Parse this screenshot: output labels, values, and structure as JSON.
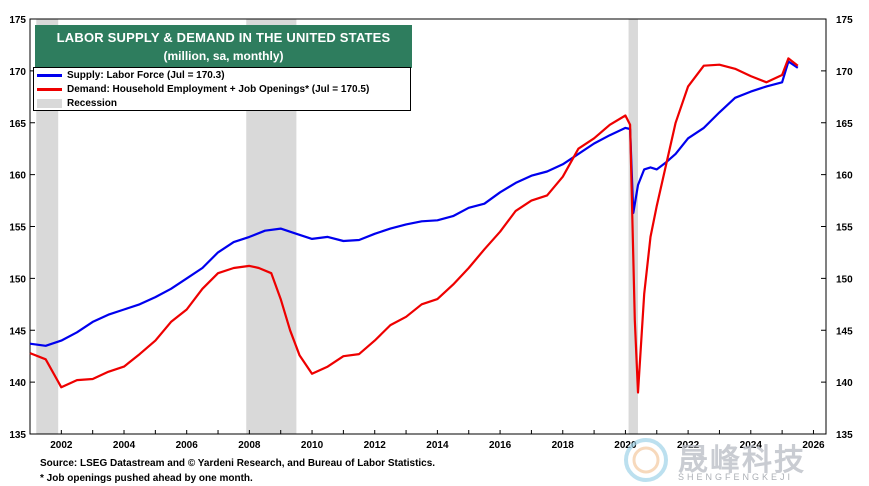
{
  "chart_data": {
    "type": "line",
    "title": "LABOR SUPPLY & DEMAND IN THE UNITED STATES",
    "subtitle": "(million, sa, monthly)",
    "xlim": [
      2001.0,
      2026.4
    ],
    "ylim": [
      135,
      175
    ],
    "x_ticks": [
      2002,
      2004,
      2006,
      2008,
      2010,
      2012,
      2014,
      2016,
      2018,
      2020,
      2022,
      2024,
      2026
    ],
    "y_ticks": [
      135,
      140,
      145,
      150,
      155,
      160,
      165,
      170,
      175
    ],
    "recessions": [
      [
        2001.2,
        2001.9
      ],
      [
        2007.9,
        2009.5
      ],
      [
        2020.1,
        2020.4
      ]
    ],
    "legend_recession": "Recession",
    "series": [
      {
        "name": "Supply: Labor Force (Jul = 170.3)",
        "color": "#0000ee",
        "x": [
          2001.0,
          2001.5,
          2002.0,
          2002.5,
          2003.0,
          2003.5,
          2004.0,
          2004.5,
          2005.0,
          2005.5,
          2006.0,
          2006.5,
          2007.0,
          2007.5,
          2008.0,
          2008.5,
          2009.0,
          2009.5,
          2010.0,
          2010.5,
          2011.0,
          2011.5,
          2012.0,
          2012.5,
          2013.0,
          2013.5,
          2014.0,
          2014.5,
          2015.0,
          2015.5,
          2016.0,
          2016.5,
          2017.0,
          2017.5,
          2018.0,
          2018.5,
          2019.0,
          2019.5,
          2020.0,
          2020.15,
          2020.25,
          2020.4,
          2020.6,
          2020.8,
          2021.0,
          2021.3,
          2021.6,
          2022.0,
          2022.5,
          2023.0,
          2023.5,
          2024.0,
          2024.5,
          2025.0,
          2025.2,
          2025.5
        ],
        "values": [
          143.7,
          143.5,
          144.0,
          144.8,
          145.8,
          146.5,
          147.0,
          147.5,
          148.2,
          149.0,
          150.0,
          151.0,
          152.5,
          153.5,
          154.0,
          154.6,
          154.8,
          154.3,
          153.8,
          154.0,
          153.6,
          153.7,
          154.3,
          154.8,
          155.2,
          155.5,
          155.6,
          156.0,
          156.8,
          157.2,
          158.3,
          159.2,
          159.9,
          160.3,
          161.0,
          162.0,
          163.0,
          163.8,
          164.5,
          164.4,
          156.3,
          159.0,
          160.5,
          160.7,
          160.5,
          161.2,
          162.0,
          163.5,
          164.5,
          166.0,
          167.4,
          168.0,
          168.5,
          168.9,
          170.9,
          170.3
        ]
      },
      {
        "name": "Demand: Household Employment + Job Openings* (Jul = 170.5)",
        "color": "#ee0000",
        "x": [
          2001.0,
          2001.5,
          2002.0,
          2002.5,
          2003.0,
          2003.5,
          2004.0,
          2004.5,
          2005.0,
          2005.5,
          2006.0,
          2006.5,
          2007.0,
          2007.5,
          2008.0,
          2008.3,
          2008.7,
          2009.0,
          2009.3,
          2009.6,
          2010.0,
          2010.5,
          2011.0,
          2011.5,
          2012.0,
          2012.5,
          2013.0,
          2013.5,
          2014.0,
          2014.5,
          2015.0,
          2015.5,
          2016.0,
          2016.5,
          2017.0,
          2017.5,
          2018.0,
          2018.5,
          2019.0,
          2019.5,
          2020.0,
          2020.15,
          2020.3,
          2020.4,
          2020.6,
          2020.8,
          2021.0,
          2021.3,
          2021.6,
          2022.0,
          2022.5,
          2023.0,
          2023.5,
          2024.0,
          2024.5,
          2025.0,
          2025.2,
          2025.5
        ],
        "values": [
          142.8,
          142.2,
          139.5,
          140.2,
          140.3,
          141.0,
          141.5,
          142.7,
          144.0,
          145.8,
          147.0,
          149.0,
          150.5,
          151.0,
          151.2,
          151.0,
          150.5,
          148.0,
          145.0,
          142.6,
          140.8,
          141.5,
          142.5,
          142.7,
          144.0,
          145.5,
          146.3,
          147.5,
          148.0,
          149.4,
          151.0,
          152.8,
          154.5,
          156.5,
          157.5,
          158.0,
          159.8,
          162.5,
          163.5,
          164.8,
          165.7,
          164.8,
          146.0,
          139.0,
          148.5,
          154.0,
          157.0,
          161.0,
          165.0,
          168.5,
          170.5,
          170.6,
          170.2,
          169.5,
          168.9,
          169.6,
          171.2,
          170.5
        ]
      }
    ]
  },
  "source_note": "Source: LSEG Datastream and © Yardeni Research, and  Bureau of Labor Statistics.",
  "footnote": "* Job openings pushed ahead by one month.",
  "watermark": {
    "cn": "晟峰科技",
    "en": "SHENGFENGKEJI"
  }
}
